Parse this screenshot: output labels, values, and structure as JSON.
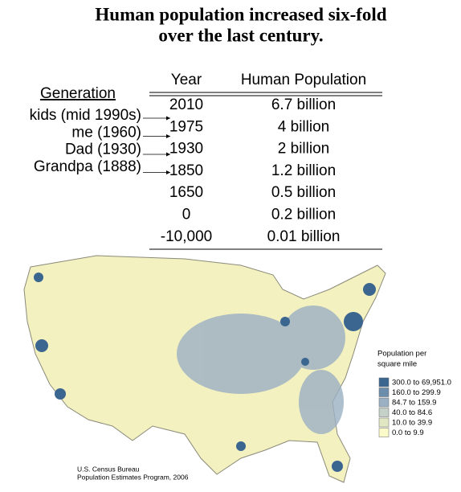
{
  "title": [
    "Human population increased six-fold",
    "over the last century."
  ],
  "table": {
    "headers": [
      "Year",
      "Human Population"
    ],
    "rows": [
      [
        "2010",
        "6.7 billion"
      ],
      [
        "1975",
        "4 billion"
      ],
      [
        "1930",
        "2 billion"
      ],
      [
        "1850",
        "1.2 billion"
      ],
      [
        "1650",
        "0.5 billion"
      ],
      [
        "0",
        "0.2 billion"
      ],
      [
        "-10,000",
        "0.01 billion"
      ]
    ]
  },
  "generation": {
    "heading": "Generation",
    "items": [
      "kids (mid 1990s)",
      "me (1960)",
      "Dad (1930)",
      "Grandpa (1888)"
    ]
  },
  "map": {
    "legend": {
      "title": [
        "Population per",
        "square mile"
      ],
      "items": [
        {
          "label": "300.0 to 69,951.0",
          "color": "#3b6690"
        },
        {
          "label": "160.0 to 299.9",
          "color": "#6d8dad"
        },
        {
          "label": "84.7 to 159.9",
          "color": "#9bb0c3"
        },
        {
          "label": "40.0 to 84.6",
          "color": "#c4d0c8"
        },
        {
          "label": "10.0 to 39.9",
          "color": "#e2e7c3"
        },
        {
          "label": "0.0 to 9.9",
          "color": "#fbfbc9"
        }
      ]
    },
    "source": [
      "U.S. Census Bureau",
      "Population Estimates Program, 2006"
    ]
  }
}
